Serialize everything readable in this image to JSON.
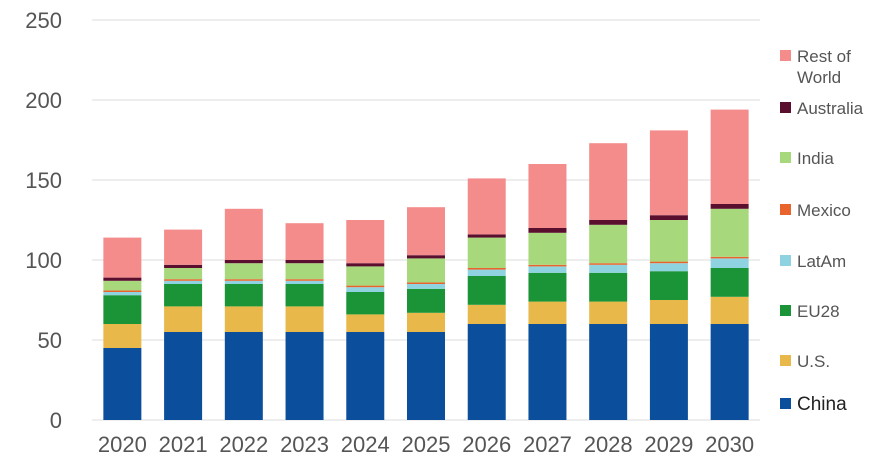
{
  "chart_data": {
    "type": "bar",
    "stacked": true,
    "title": "",
    "xlabel": "",
    "ylabel": "",
    "ylim": [
      0,
      250
    ],
    "yticks": [
      0,
      50,
      100,
      150,
      200,
      250
    ],
    "grid": "horizontal",
    "legend_position": "right",
    "categories": [
      "2020",
      "2021",
      "2022",
      "2023",
      "2024",
      "2025",
      "2026",
      "2027",
      "2028",
      "2029",
      "2030"
    ],
    "series": [
      {
        "name": "China",
        "color": "#0b4f9c",
        "values": [
          45,
          55,
          55,
          55,
          55,
          55,
          60,
          60,
          60,
          60,
          60
        ]
      },
      {
        "name": "U.S.",
        "color": "#e8b84a",
        "values": [
          15,
          16,
          16,
          16,
          11,
          12,
          12,
          14,
          14,
          15,
          17
        ]
      },
      {
        "name": "EU28",
        "color": "#1a9437",
        "values": [
          18,
          14,
          14,
          14,
          14,
          15,
          18,
          18,
          18,
          18,
          18
        ]
      },
      {
        "name": "LatAm",
        "color": "#8fd3e0",
        "values": [
          2,
          2,
          2,
          2,
          3,
          3,
          4,
          4,
          5,
          5,
          6
        ]
      },
      {
        "name": "Mexico",
        "color": "#e8642c",
        "values": [
          1,
          1,
          1,
          1,
          1,
          1,
          1,
          1,
          1,
          1,
          1
        ]
      },
      {
        "name": "India",
        "color": "#a7d87c",
        "values": [
          6,
          7,
          10,
          10,
          12,
          15,
          19,
          20,
          24,
          26,
          30
        ]
      },
      {
        "name": "Australia",
        "color": "#5a0f2e",
        "values": [
          2,
          2,
          2,
          2,
          2,
          2,
          2,
          3,
          3,
          3,
          3
        ]
      },
      {
        "name": "Rest of World",
        "color": "#f48c8c",
        "values": [
          25,
          22,
          32,
          23,
          27,
          30,
          35,
          40,
          48,
          53,
          59
        ]
      }
    ],
    "legend": [
      {
        "name": "Rest of World",
        "lines": [
          "Rest of",
          "World"
        ],
        "color": "#f48c8c"
      },
      {
        "name": "Australia",
        "lines": [
          "Australia"
        ],
        "color": "#5a0f2e"
      },
      {
        "name": "India",
        "lines": [
          "India"
        ],
        "color": "#a7d87c"
      },
      {
        "name": "Mexico",
        "lines": [
          "Mexico"
        ],
        "color": "#e8642c"
      },
      {
        "name": "LatAm",
        "lines": [
          "LatAm"
        ],
        "color": "#8fd3e0"
      },
      {
        "name": "EU28",
        "lines": [
          "EU28"
        ],
        "color": "#1a9437"
      },
      {
        "name": "U.S.",
        "lines": [
          "U.S."
        ],
        "color": "#e8b84a"
      },
      {
        "name": "China",
        "lines": [
          "China"
        ],
        "color": "#0b4f9c",
        "emphasis": true
      }
    ]
  }
}
